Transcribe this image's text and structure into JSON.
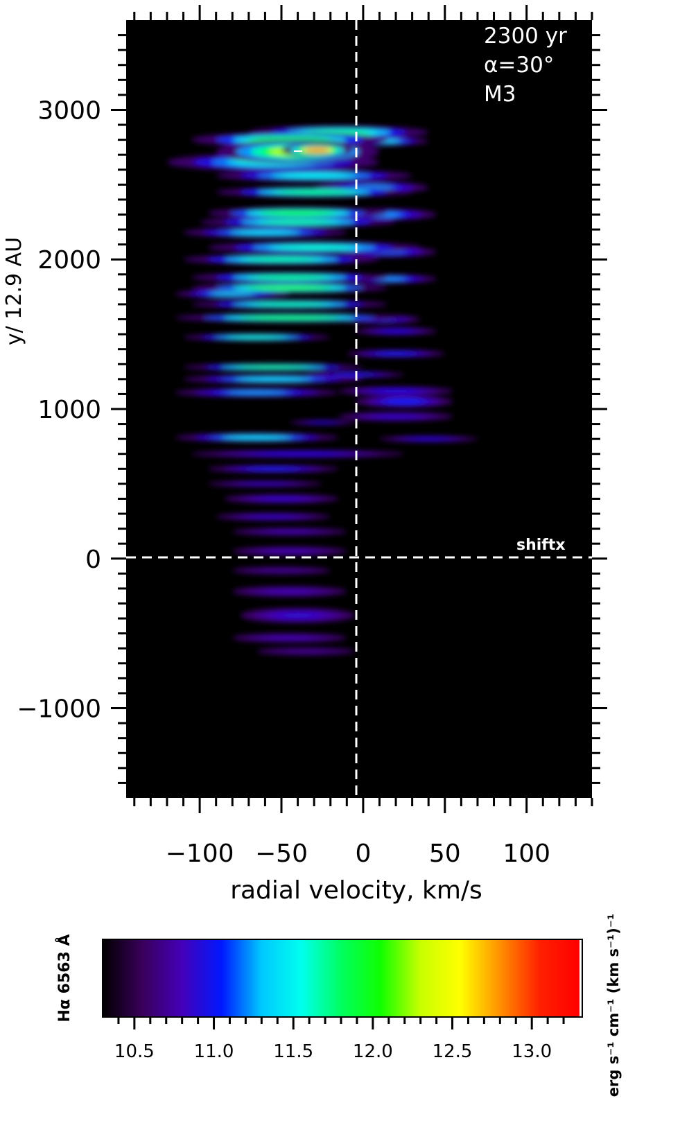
{
  "chart_data": [
    {
      "type": "heatmap",
      "title": "",
      "xlabel": "radial velocity, km/s",
      "ylabel": "y/ 12.9 AU",
      "xlim": [
        -145,
        140
      ],
      "ylim": [
        -1600,
        3600
      ],
      "xticks": [
        -100,
        -50,
        0,
        50,
        100
      ],
      "xtick_labels": [
        "−100",
        "−50",
        "0",
        "50",
        "100"
      ],
      "yticks": [
        -1000,
        0,
        1000,
        2000,
        3000
      ],
      "ytick_labels": [
        "−1000",
        "0",
        "1000",
        "2000",
        "3000"
      ],
      "grid": false,
      "annotations": {
        "time": "2300 yr",
        "angle": "α=30°",
        "model": "M3",
        "shift_label": "shiftx"
      },
      "reference_lines": {
        "x": 0,
        "y": 0
      },
      "background_color": "#000000",
      "emission_blobs": [
        {
          "v": -28,
          "y": 2730,
          "wv": 22,
          "wy": 45,
          "level": 13.0
        },
        {
          "v": -40,
          "y": 2720,
          "wv": 50,
          "wy": 80,
          "level": 12.4
        },
        {
          "v": -45,
          "y": 2800,
          "wv": 60,
          "wy": 50,
          "level": 12.0
        },
        {
          "v": -15,
          "y": 2850,
          "wv": 55,
          "wy": 45,
          "level": 11.8
        },
        {
          "v": 10,
          "y": 2790,
          "wv": 30,
          "wy": 30,
          "level": 11.5
        },
        {
          "v": -55,
          "y": 2650,
          "wv": 65,
          "wy": 60,
          "level": 11.6
        },
        {
          "v": -30,
          "y": 2560,
          "wv": 60,
          "wy": 40,
          "level": 11.6
        },
        {
          "v": -30,
          "y": 2450,
          "wv": 60,
          "wy": 35,
          "level": 11.9
        },
        {
          "v": 5,
          "y": 2480,
          "wv": 35,
          "wy": 40,
          "level": 11.3
        },
        {
          "v": -40,
          "y": 2310,
          "wv": 55,
          "wy": 40,
          "level": 12.1
        },
        {
          "v": -40,
          "y": 2250,
          "wv": 60,
          "wy": 35,
          "level": 11.8
        },
        {
          "v": -60,
          "y": 2180,
          "wv": 50,
          "wy": 35,
          "level": 11.5
        },
        {
          "v": 10,
          "y": 2300,
          "wv": 35,
          "wy": 40,
          "level": 11.3
        },
        {
          "v": -30,
          "y": 2080,
          "wv": 65,
          "wy": 40,
          "level": 11.7
        },
        {
          "v": -50,
          "y": 2000,
          "wv": 60,
          "wy": 35,
          "level": 11.8
        },
        {
          "v": 15,
          "y": 2050,
          "wv": 30,
          "wy": 35,
          "level": 11.2
        },
        {
          "v": -45,
          "y": 1880,
          "wv": 60,
          "wy": 35,
          "level": 11.9
        },
        {
          "v": -45,
          "y": 1810,
          "wv": 60,
          "wy": 35,
          "level": 12.2
        },
        {
          "v": -80,
          "y": 1770,
          "wv": 35,
          "wy": 30,
          "level": 11.4
        },
        {
          "v": 15,
          "y": 1870,
          "wv": 30,
          "wy": 30,
          "level": 11.3
        },
        {
          "v": -45,
          "y": 1700,
          "wv": 60,
          "wy": 30,
          "level": 11.8
        },
        {
          "v": -45,
          "y": 1610,
          "wv": 70,
          "wy": 30,
          "level": 12.1
        },
        {
          "v": 10,
          "y": 1600,
          "wv": 25,
          "wy": 30,
          "level": 11.2
        },
        {
          "v": 20,
          "y": 1520,
          "wv": 25,
          "wy": 25,
          "level": 11.0
        },
        {
          "v": -65,
          "y": 1480,
          "wv": 45,
          "wy": 25,
          "level": 11.7
        },
        {
          "v": 20,
          "y": 1370,
          "wv": 30,
          "wy": 25,
          "level": 11.1
        },
        {
          "v": -55,
          "y": 1280,
          "wv": 55,
          "wy": 25,
          "level": 11.9
        },
        {
          "v": -55,
          "y": 1200,
          "wv": 55,
          "wy": 30,
          "level": 11.5
        },
        {
          "v": -5,
          "y": 1230,
          "wv": 30,
          "wy": 20,
          "level": 11.1
        },
        {
          "v": -65,
          "y": 1110,
          "wv": 50,
          "wy": 30,
          "level": 11.3
        },
        {
          "v": 20,
          "y": 1120,
          "wv": 35,
          "wy": 30,
          "level": 11.0
        },
        {
          "v": 25,
          "y": 1050,
          "wv": 30,
          "wy": 40,
          "level": 11.1
        },
        {
          "v": 20,
          "y": 950,
          "wv": 35,
          "wy": 30,
          "level": 10.9
        },
        {
          "v": -25,
          "y": 910,
          "wv": 20,
          "wy": 15,
          "level": 11.0
        },
        {
          "v": -65,
          "y": 810,
          "wv": 50,
          "wy": 30,
          "level": 11.5
        },
        {
          "v": 40,
          "y": 800,
          "wv": 30,
          "wy": 20,
          "level": 11.0
        },
        {
          "v": -40,
          "y": 700,
          "wv": 65,
          "wy": 25,
          "level": 11.0
        },
        {
          "v": -55,
          "y": 600,
          "wv": 40,
          "wy": 25,
          "level": 11.1
        },
        {
          "v": -60,
          "y": 500,
          "wv": 35,
          "wy": 20,
          "level": 10.9
        },
        {
          "v": -50,
          "y": 400,
          "wv": 35,
          "wy": 30,
          "level": 10.9
        },
        {
          "v": -55,
          "y": 280,
          "wv": 35,
          "wy": 25,
          "level": 10.9
        },
        {
          "v": -45,
          "y": 180,
          "wv": 35,
          "wy": 25,
          "level": 10.8
        },
        {
          "v": -45,
          "y": 50,
          "wv": 35,
          "wy": 30,
          "level": 10.8
        },
        {
          "v": -50,
          "y": -80,
          "wv": 30,
          "wy": 25,
          "level": 10.7
        },
        {
          "v": -45,
          "y": -220,
          "wv": 35,
          "wy": 35,
          "level": 10.8
        },
        {
          "v": -40,
          "y": -380,
          "wv": 35,
          "wy": 50,
          "level": 10.9
        },
        {
          "v": -45,
          "y": -530,
          "wv": 35,
          "wy": 30,
          "level": 10.8
        },
        {
          "v": -35,
          "y": -620,
          "wv": 30,
          "wy": 25,
          "level": 10.7
        }
      ]
    },
    {
      "type": "heatmap",
      "title": "",
      "xlabel": "",
      "ylabel": "",
      "label_left": "Hα 6563 Å",
      "label_right": "erg s⁻¹ cm⁻¹ (km s⁻¹)⁻¹",
      "xlim": [
        10.3,
        13.3
      ],
      "xticks": [
        10.5,
        11.0,
        11.5,
        12.0,
        12.5,
        13.0
      ],
      "xtick_labels": [
        "10.5",
        "11.0",
        "11.5",
        "12.0",
        "12.5",
        "13.0"
      ],
      "colormap_stops": [
        "#000000",
        "#3a005a",
        "#4400b8",
        "#0018ff",
        "#00c8ff",
        "#00ffee",
        "#00ff60",
        "#10ff00",
        "#c8ff00",
        "#ffff00",
        "#ff9000",
        "#ff2000",
        "#ff0000"
      ]
    }
  ]
}
